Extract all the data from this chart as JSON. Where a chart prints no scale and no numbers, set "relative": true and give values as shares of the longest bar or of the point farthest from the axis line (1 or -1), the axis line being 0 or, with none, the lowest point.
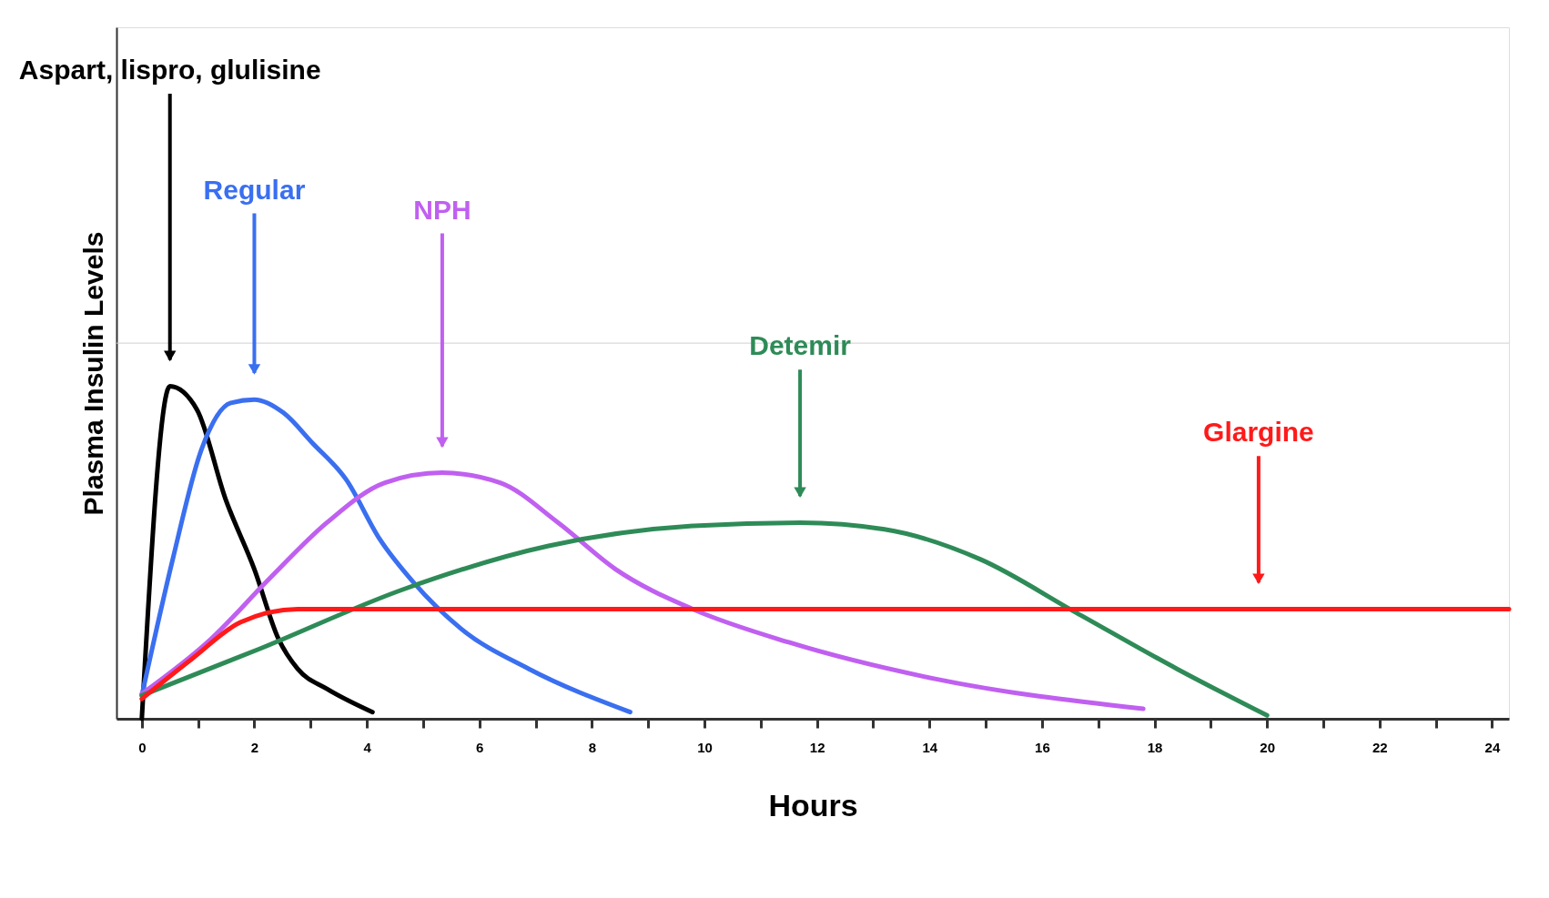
{
  "chart_data": {
    "type": "line",
    "relative": true,
    "xlabel": "Hours",
    "ylabel": "Plasma Insulin Levels",
    "xlim": [
      -0.45,
      24.3
    ],
    "xticks": [
      0,
      {
        "value": 1,
        "label": null
      },
      2,
      {
        "value": 3,
        "label": null
      },
      4,
      {
        "value": 5,
        "label": null
      },
      6,
      {
        "value": 7,
        "label": null
      },
      8,
      {
        "value": 9,
        "label": null
      },
      10,
      {
        "value": 11,
        "label": null
      },
      12,
      {
        "value": 13,
        "label": null
      },
      14,
      {
        "value": 15,
        "label": null
      },
      16,
      {
        "value": 17,
        "label": null
      },
      18,
      {
        "value": 19,
        "label": null
      },
      20,
      {
        "value": 21,
        "label": null
      },
      22,
      {
        "value": 23,
        "label": null
      },
      24
    ],
    "grid": false,
    "marker": "none",
    "line_style": "solid",
    "series": [
      {
        "color": "#000000",
        "x": [
          0,
          0.5,
          0.98,
          1.49,
          2.0,
          2.43,
          2.77,
          3.29,
          4.1
        ],
        "values": [
          0,
          1.0,
          0.93,
          0.66,
          0.45,
          0.24,
          0.15,
          0.09,
          0.02
        ]
      },
      {
        "color": "#3a6ff0",
        "x": [
          0,
          0.55,
          1.06,
          1.58,
          2.0,
          2.52,
          3.03,
          3.63,
          4.23,
          4.83,
          5.68,
          6.88,
          8.68
        ],
        "values": [
          0.07,
          0.48,
          0.81,
          0.95,
          0.96,
          0.92,
          0.83,
          0.72,
          0.54,
          0.41,
          0.27,
          0.15,
          0.02
        ]
      },
      {
        "color": "#c060f0",
        "x": [
          0,
          1.23,
          2.26,
          3.29,
          4.32,
          5.34,
          6.37,
          7.4,
          8.42,
          9.79,
          11.5,
          14.1,
          17.8
        ],
        "values": [
          0.075,
          0.24,
          0.42,
          0.59,
          0.71,
          0.74,
          0.71,
          0.59,
          0.45,
          0.33,
          0.23,
          0.12,
          0.03
        ]
      },
      {
        "color": "#2e8b57",
        "x": [
          0,
          2.09,
          4.66,
          7.23,
          9.79,
          11.7,
          13.2,
          14.9,
          16.6,
          18.4,
          20.0
        ],
        "values": [
          0.07,
          0.21,
          0.39,
          0.52,
          0.58,
          0.59,
          0.57,
          0.48,
          0.32,
          0.15,
          0.01
        ]
      },
      {
        "color": "#ff1a1a",
        "x": [
          0,
          0.89,
          1.75,
          2.77,
          19.85,
          24.3
        ],
        "values": [
          0.06,
          0.18,
          0.29,
          0.33,
          0.33,
          0.33
        ]
      }
    ],
    "annotations": [
      "Aspart, lispro, glulisine",
      "Regular",
      "NPH",
      "Detemir",
      "Glargine"
    ],
    "ref_lines": [
      {
        "axis": "y",
        "value": 1.13,
        "color": "#d0d0d0"
      }
    ]
  }
}
